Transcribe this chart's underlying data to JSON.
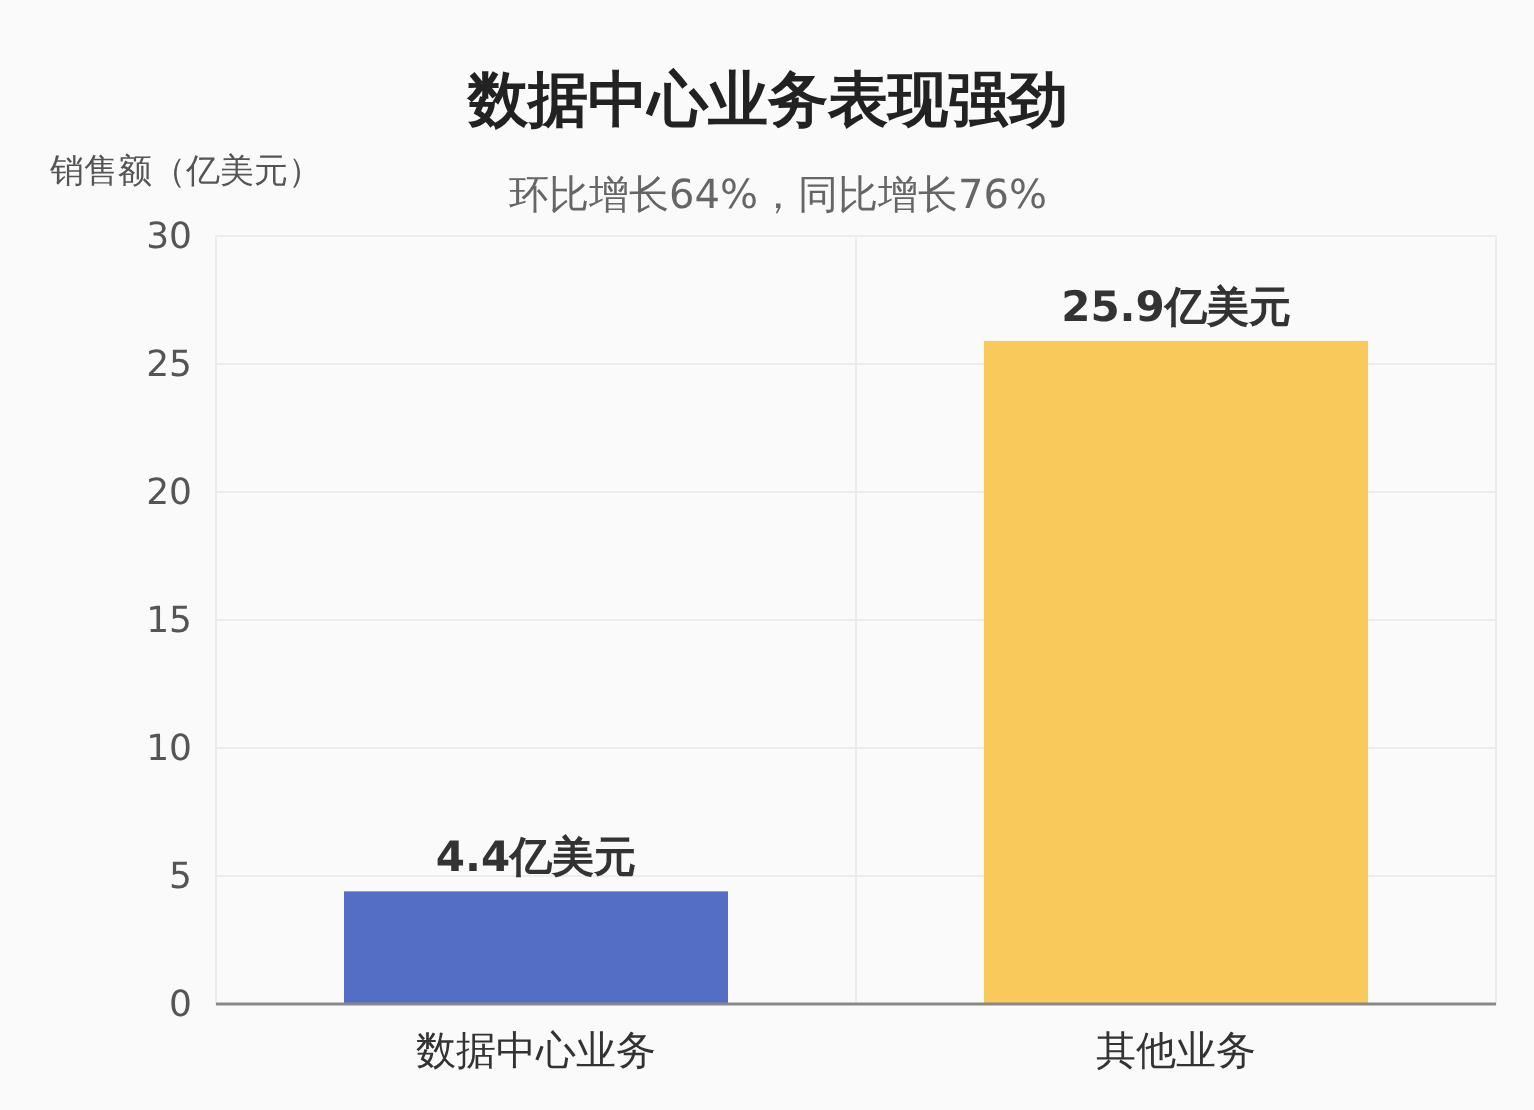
{
  "chart_data": {
    "type": "bar",
    "title": "数据中心业务表现强劲",
    "subtitle": "环比增长64%，同比增长76%",
    "ylabel": "销售额（亿美元）",
    "categories": [
      "数据中心业务",
      "其他业务"
    ],
    "values": [
      4.4,
      25.9
    ],
    "colors": [
      "#536ec4",
      "#f9c95c"
    ],
    "value_labels": [
      "4.4亿美元",
      "25.9亿美元"
    ],
    "ylim": [
      0,
      30
    ],
    "yticks": [
      0,
      5,
      10,
      15,
      20,
      25,
      30
    ],
    "grid": true
  }
}
